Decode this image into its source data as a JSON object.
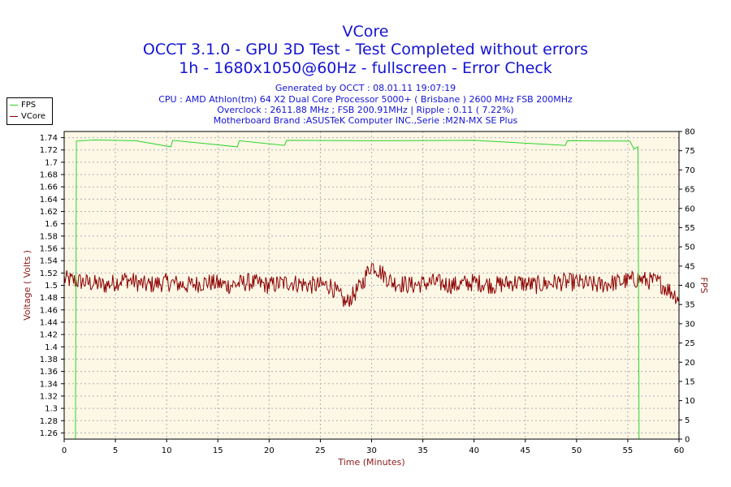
{
  "titles": {
    "line1": "VCore",
    "line2": "OCCT 3.1.0 - GPU 3D Test - Test Completed without errors",
    "line3": "1h - 1680x1050@60Hz - fullscreen - Error Check"
  },
  "info": {
    "generated": "Generated by OCCT : 08.01.11 19:07:19",
    "cpu": "CPU : AMD Athlon(tm) 64 X2 Dual Core Processor 5000+ ( Brisbane ) 2600 MHz FSB 200MHz",
    "overclock": "Overclock : 2611.88 MHz ; FSB 200.91MHz | Ripple : 0.11 ( 7.22%)",
    "motherboard": "Motherboard Brand :ASUSTeK Computer INC.,Serie :M2N-MX SE Plus"
  },
  "colors": {
    "fps": "#2ad42a",
    "vcore": "#8b0000",
    "plot_bg": "#fdf7e6",
    "grid": "#b0b0b0",
    "title": "#1414d4",
    "axis_label": "#8b1a1a"
  },
  "chart_data": {
    "type": "line",
    "xlabel": "Time (Minutes)",
    "ylabel": "Voltage ( Volts )",
    "y2label": "FPS",
    "xlim": [
      0,
      60
    ],
    "ylim": [
      1.25,
      1.75
    ],
    "y2lim": [
      0,
      80
    ],
    "x_ticks": [
      "0",
      "5",
      "10",
      "15",
      "20",
      "25",
      "30",
      "35",
      "40",
      "45",
      "50",
      "55",
      "60"
    ],
    "y_ticks": [
      "1.26",
      "1.28",
      "1.3",
      "1.32",
      "1.34",
      "1.36",
      "1.38",
      "1.4",
      "1.42",
      "1.44",
      "1.46",
      "1.48",
      "1.5",
      "1.52",
      "1.54",
      "1.56",
      "1.58",
      "1.6",
      "1.62",
      "1.64",
      "1.66",
      "1.68",
      "1.7",
      "1.72",
      "1.74"
    ],
    "y2_ticks": [
      "0",
      "5",
      "10",
      "15",
      "20",
      "25",
      "30",
      "35",
      "40",
      "45",
      "50",
      "55",
      "60",
      "65",
      "70",
      "75",
      "80"
    ],
    "grid": true,
    "legend": "top-left outside",
    "series": [
      {
        "name": "FPS",
        "axis": "right",
        "active_range": [
          1.1,
          56.1
        ],
        "points": [
          [
            0,
            0
          ],
          [
            1.1,
            0
          ],
          [
            1.2,
            77.5
          ],
          [
            3.0,
            77.8
          ],
          [
            7.0,
            77.6
          ],
          [
            10.4,
            76.0
          ],
          [
            10.6,
            77.7
          ],
          [
            16.9,
            76.0
          ],
          [
            17.1,
            77.6
          ],
          [
            21.5,
            76.4
          ],
          [
            21.7,
            77.7
          ],
          [
            30.0,
            77.6
          ],
          [
            40.0,
            77.7
          ],
          [
            48.9,
            76.4
          ],
          [
            49.1,
            77.6
          ],
          [
            55.2,
            77.5
          ],
          [
            55.6,
            75.5
          ],
          [
            56.0,
            76.0
          ],
          [
            56.1,
            0
          ],
          [
            60,
            0
          ]
        ]
      },
      {
        "name": "VCore",
        "axis": "left",
        "mean": 1.5,
        "min": 1.465,
        "max": 1.535,
        "points": [
          [
            0,
            1.51
          ],
          [
            2,
            1.505
          ],
          [
            4,
            1.5
          ],
          [
            6,
            1.51
          ],
          [
            8,
            1.5
          ],
          [
            10,
            1.505
          ],
          [
            12,
            1.5
          ],
          [
            14,
            1.505
          ],
          [
            16,
            1.5
          ],
          [
            18,
            1.505
          ],
          [
            20,
            1.5
          ],
          [
            22,
            1.505
          ],
          [
            24,
            1.5
          ],
          [
            26,
            1.5
          ],
          [
            27.5,
            1.47
          ],
          [
            29,
            1.5
          ],
          [
            30,
            1.535
          ],
          [
            32,
            1.505
          ],
          [
            34,
            1.5
          ],
          [
            36,
            1.505
          ],
          [
            38,
            1.5
          ],
          [
            40,
            1.505
          ],
          [
            42,
            1.5
          ],
          [
            44,
            1.505
          ],
          [
            46,
            1.5
          ],
          [
            48,
            1.505
          ],
          [
            50,
            1.505
          ],
          [
            52,
            1.5
          ],
          [
            54,
            1.505
          ],
          [
            56,
            1.51
          ],
          [
            58,
            1.505
          ],
          [
            60,
            1.48
          ]
        ]
      }
    ]
  }
}
